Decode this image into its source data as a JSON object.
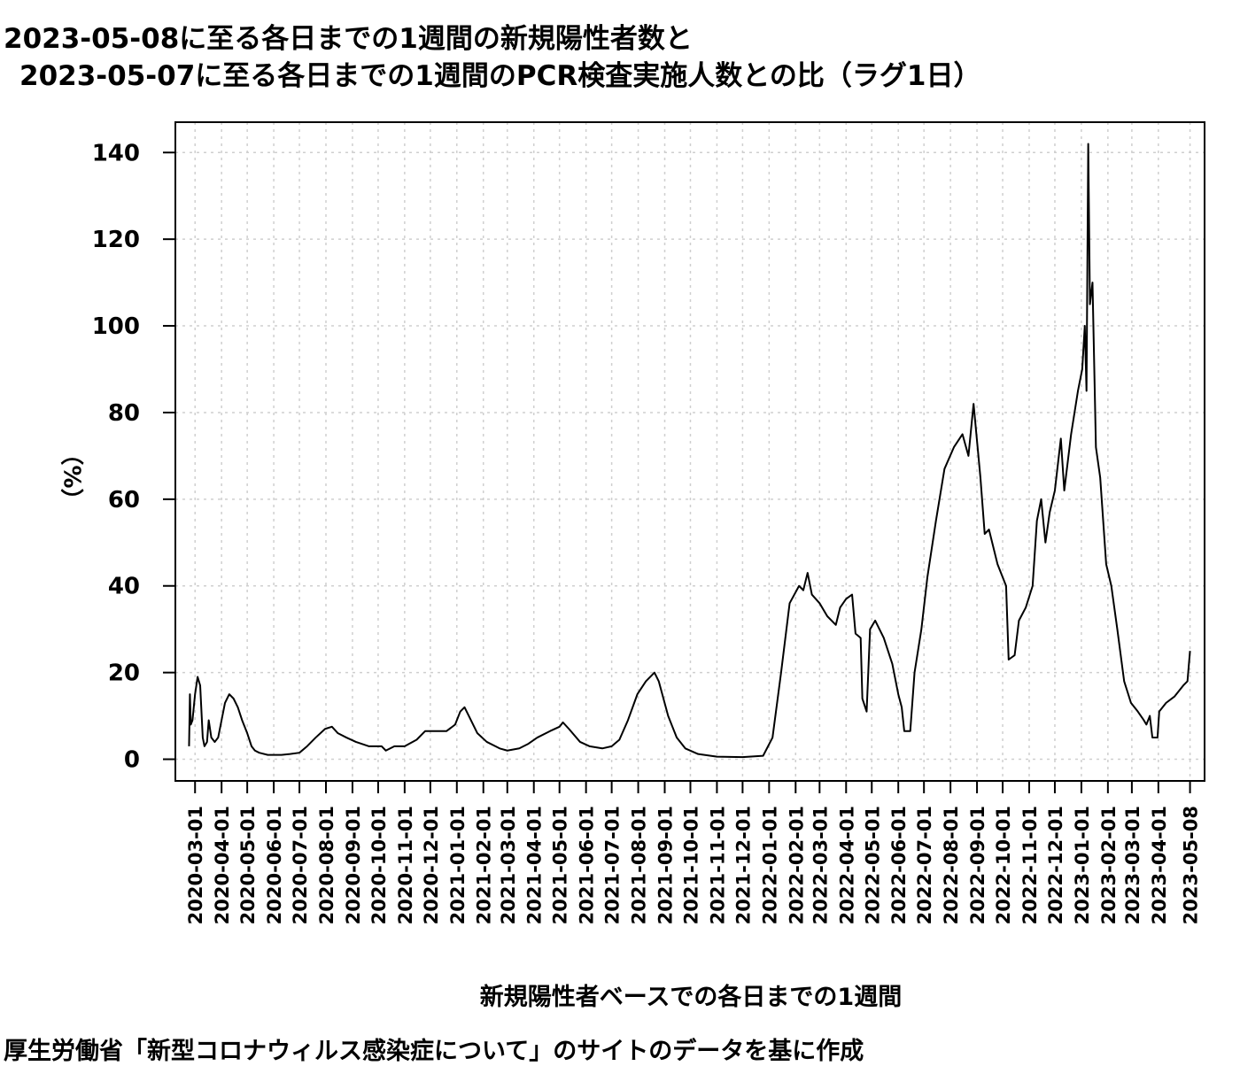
{
  "chart_data": {
    "type": "line",
    "title_line1": "2023-05-08に至る各日までの1週間の新規陽性者数と",
    "title_line2": "2023-05-07に至る各日までの1週間のPCR検査実施人数との比（ラグ1日）",
    "ylabel": "（%）",
    "xlabel": "新規陽性者ベースでの各日までの1週間",
    "caption": "厚生労働省「新型コロナウィルス感染症について」のサイトのデータを基に作成",
    "ylim": [
      -5,
      147
    ],
    "xlim": [
      "2020-02-07",
      "2023-05-25"
    ],
    "yticks": [
      0,
      20,
      40,
      60,
      80,
      100,
      120,
      140
    ],
    "xticks": [
      "2020-03-01",
      "2020-04-01",
      "2020-05-01",
      "2020-06-01",
      "2020-07-01",
      "2020-08-01",
      "2020-09-01",
      "2020-10-01",
      "2020-11-01",
      "2020-12-01",
      "2021-01-01",
      "2021-02-01",
      "2021-03-01",
      "2021-04-01",
      "2021-05-01",
      "2021-06-01",
      "2021-07-01",
      "2021-08-01",
      "2021-09-01",
      "2021-10-01",
      "2021-11-01",
      "2021-12-01",
      "2022-01-01",
      "2022-02-01",
      "2022-03-01",
      "2022-04-01",
      "2022-05-01",
      "2022-06-01",
      "2022-07-01",
      "2022-08-01",
      "2022-09-01",
      "2022-10-01",
      "2022-11-01",
      "2022-12-01",
      "2023-01-01",
      "2023-02-01",
      "2023-03-01",
      "2023-04-01",
      "2023-05-08"
    ],
    "grid": true,
    "series": [
      {
        "color": "#000000",
        "points": [
          [
            "2020-02-23",
            3
          ],
          [
            "2020-02-24",
            15
          ],
          [
            "2020-02-25",
            8
          ],
          [
            "2020-02-27",
            9
          ],
          [
            "2020-03-01",
            15
          ],
          [
            "2020-03-04",
            19
          ],
          [
            "2020-03-07",
            17
          ],
          [
            "2020-03-10",
            5
          ],
          [
            "2020-03-12",
            3
          ],
          [
            "2020-03-15",
            4
          ],
          [
            "2020-03-17",
            9
          ],
          [
            "2020-03-20",
            5
          ],
          [
            "2020-03-24",
            4
          ],
          [
            "2020-03-28",
            5
          ],
          [
            "2020-04-01",
            9
          ],
          [
            "2020-04-05",
            13
          ],
          [
            "2020-04-10",
            15
          ],
          [
            "2020-04-15",
            14
          ],
          [
            "2020-04-20",
            12
          ],
          [
            "2020-04-25",
            9
          ],
          [
            "2020-05-01",
            6
          ],
          [
            "2020-05-06",
            3
          ],
          [
            "2020-05-10",
            2
          ],
          [
            "2020-05-15",
            1.5
          ],
          [
            "2020-05-25",
            1
          ],
          [
            "2020-06-10",
            1
          ],
          [
            "2020-06-20",
            1.2
          ],
          [
            "2020-07-01",
            1.5
          ],
          [
            "2020-07-10",
            3
          ],
          [
            "2020-07-20",
            5
          ],
          [
            "2020-07-31",
            7
          ],
          [
            "2020-08-08",
            7.5
          ],
          [
            "2020-08-15",
            6
          ],
          [
            "2020-08-25",
            5
          ],
          [
            "2020-09-05",
            4
          ],
          [
            "2020-09-20",
            3
          ],
          [
            "2020-10-05",
            3
          ],
          [
            "2020-10-10",
            2
          ],
          [
            "2020-10-20",
            3
          ],
          [
            "2020-11-01",
            3
          ],
          [
            "2020-11-15",
            4.5
          ],
          [
            "2020-11-25",
            6.5
          ],
          [
            "2020-12-05",
            6.5
          ],
          [
            "2020-12-20",
            6.5
          ],
          [
            "2020-12-30",
            8
          ],
          [
            "2021-01-05",
            11
          ],
          [
            "2021-01-10",
            12
          ],
          [
            "2021-01-15",
            10
          ],
          [
            "2021-01-25",
            6
          ],
          [
            "2021-02-05",
            4
          ],
          [
            "2021-02-20",
            2.5
          ],
          [
            "2021-03-01",
            2
          ],
          [
            "2021-03-15",
            2.5
          ],
          [
            "2021-03-25",
            3.5
          ],
          [
            "2021-04-05",
            5
          ],
          [
            "2021-04-20",
            6.5
          ],
          [
            "2021-05-01",
            7.5
          ],
          [
            "2021-05-05",
            8.5
          ],
          [
            "2021-05-12",
            7
          ],
          [
            "2021-05-25",
            4
          ],
          [
            "2021-06-05",
            3
          ],
          [
            "2021-06-20",
            2.5
          ],
          [
            "2021-07-01",
            3
          ],
          [
            "2021-07-10",
            4.5
          ],
          [
            "2021-07-20",
            9
          ],
          [
            "2021-07-31",
            15
          ],
          [
            "2021-08-10",
            18
          ],
          [
            "2021-08-20",
            20
          ],
          [
            "2021-08-25",
            18
          ],
          [
            "2021-09-05",
            10
          ],
          [
            "2021-09-15",
            5
          ],
          [
            "2021-09-25",
            2.5
          ],
          [
            "2021-10-10",
            1.2
          ],
          [
            "2021-11-01",
            0.6
          ],
          [
            "2021-12-01",
            0.5
          ],
          [
            "2021-12-25",
            0.8
          ],
          [
            "2022-01-05",
            5
          ],
          [
            "2022-01-15",
            20
          ],
          [
            "2022-01-25",
            36
          ],
          [
            "2022-02-05",
            40
          ],
          [
            "2022-02-10",
            39
          ],
          [
            "2022-02-15",
            43
          ],
          [
            "2022-02-20",
            38
          ],
          [
            "2022-03-01",
            36
          ],
          [
            "2022-03-10",
            33
          ],
          [
            "2022-03-20",
            31
          ],
          [
            "2022-03-25",
            35
          ],
          [
            "2022-04-01",
            37
          ],
          [
            "2022-04-08",
            38
          ],
          [
            "2022-04-12",
            29
          ],
          [
            "2022-04-18",
            28
          ],
          [
            "2022-04-20",
            14
          ],
          [
            "2022-04-25",
            11
          ],
          [
            "2022-04-29",
            30
          ],
          [
            "2022-05-05",
            32
          ],
          [
            "2022-05-15",
            28
          ],
          [
            "2022-05-25",
            22
          ],
          [
            "2022-06-01",
            15
          ],
          [
            "2022-06-05",
            12
          ],
          [
            "2022-06-08",
            6.5
          ],
          [
            "2022-06-15",
            6.5
          ],
          [
            "2022-06-20",
            20
          ],
          [
            "2022-06-28",
            30
          ],
          [
            "2022-07-05",
            42
          ],
          [
            "2022-07-15",
            55
          ],
          [
            "2022-07-25",
            67
          ],
          [
            "2022-08-05",
            72
          ],
          [
            "2022-08-15",
            75
          ],
          [
            "2022-08-22",
            70
          ],
          [
            "2022-08-28",
            82
          ],
          [
            "2022-09-05",
            65
          ],
          [
            "2022-09-10",
            52
          ],
          [
            "2022-09-15",
            53
          ],
          [
            "2022-09-25",
            45
          ],
          [
            "2022-10-05",
            40
          ],
          [
            "2022-10-08",
            23
          ],
          [
            "2022-10-15",
            24
          ],
          [
            "2022-10-20",
            32
          ],
          [
            "2022-10-28",
            35
          ],
          [
            "2022-11-05",
            40
          ],
          [
            "2022-11-10",
            55
          ],
          [
            "2022-11-15",
            60
          ],
          [
            "2022-11-20",
            50
          ],
          [
            "2022-11-25",
            57
          ],
          [
            "2022-12-01",
            62
          ],
          [
            "2022-12-08",
            74
          ],
          [
            "2022-12-12",
            62
          ],
          [
            "2022-12-20",
            75
          ],
          [
            "2022-12-28",
            85
          ],
          [
            "2023-01-02",
            90
          ],
          [
            "2023-01-05",
            100
          ],
          [
            "2023-01-07",
            85
          ],
          [
            "2023-01-09",
            142
          ],
          [
            "2023-01-11",
            105
          ],
          [
            "2023-01-14",
            110
          ],
          [
            "2023-01-18",
            72
          ],
          [
            "2023-01-23",
            65
          ],
          [
            "2023-01-30",
            45
          ],
          [
            "2023-02-05",
            40
          ],
          [
            "2023-02-12",
            30
          ],
          [
            "2023-02-20",
            18
          ],
          [
            "2023-02-28",
            13
          ],
          [
            "2023-03-08",
            11
          ],
          [
            "2023-03-15",
            9
          ],
          [
            "2023-03-18",
            8
          ],
          [
            "2023-03-22",
            10
          ],
          [
            "2023-03-25",
            5
          ],
          [
            "2023-03-31",
            5
          ],
          [
            "2023-04-02",
            11
          ],
          [
            "2023-04-10",
            13
          ],
          [
            "2023-04-20",
            14.5
          ],
          [
            "2023-04-30",
            17
          ],
          [
            "2023-05-05",
            18
          ],
          [
            "2023-05-08",
            25
          ]
        ]
      }
    ]
  }
}
